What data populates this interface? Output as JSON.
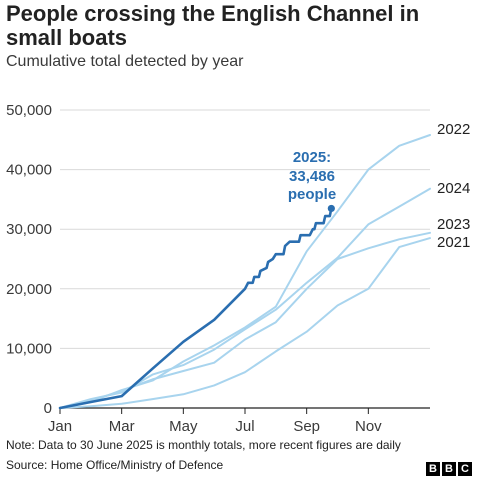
{
  "header": {
    "title": "People crossing the English Channel in small boats",
    "subtitle": "Cumulative total detected by year"
  },
  "footer": {
    "note": "Note: Data to 30 June 2025 is monthly totals, more recent figures are daily",
    "source": "Source: Home Office/Ministry of Defence",
    "logo_letters": [
      "B",
      "B",
      "C"
    ]
  },
  "colors": {
    "highlight": "#2a6eb0",
    "other_years": "#a8d4ee",
    "grid": "#d9d9d9",
    "axis": "#222222"
  },
  "chart_data": {
    "type": "line",
    "title": "People crossing the English Channel in small boats",
    "subtitle": "Cumulative total detected by year",
    "xlabel": "",
    "ylabel": "",
    "x_tick_labels": [
      "Jan",
      "Mar",
      "May",
      "Jul",
      "Sep",
      "Nov"
    ],
    "x_tick_months": [
      0,
      2,
      4,
      6,
      8,
      10
    ],
    "xlim": [
      0,
      12
    ],
    "y_ticks": [
      0,
      10000,
      20000,
      30000,
      40000,
      50000
    ],
    "y_tick_labels": [
      "0",
      "10,000",
      "20,000",
      "30,000",
      "40,000",
      "50,000"
    ],
    "ylim": [
      0,
      50000
    ],
    "grid": "horizontal",
    "series": [
      {
        "name": "2021",
        "highlight": false,
        "points": [
          [
            0,
            0
          ],
          [
            1,
            300
          ],
          [
            2,
            700
          ],
          [
            3,
            1500
          ],
          [
            4,
            2300
          ],
          [
            5,
            3800
          ],
          [
            6,
            6000
          ],
          [
            7,
            9500
          ],
          [
            8,
            12800
          ],
          [
            9,
            17200
          ],
          [
            10,
            20000
          ],
          [
            11,
            27000
          ],
          [
            12,
            28500
          ]
        ]
      },
      {
        "name": "2023",
        "highlight": false,
        "points": [
          [
            0,
            0
          ],
          [
            1,
            1200
          ],
          [
            2,
            2900
          ],
          [
            3,
            4800
          ],
          [
            4,
            6200
          ],
          [
            5,
            7600
          ],
          [
            6,
            11500
          ],
          [
            7,
            14400
          ],
          [
            8,
            20000
          ],
          [
            9,
            25000
          ],
          [
            10,
            26800
          ],
          [
            11,
            28300
          ],
          [
            12,
            29400
          ]
        ]
      },
      {
        "name": "2024",
        "highlight": false,
        "points": [
          [
            0,
            0
          ],
          [
            1,
            1500
          ],
          [
            2,
            2600
          ],
          [
            3,
            5600
          ],
          [
            4,
            7200
          ],
          [
            5,
            9800
          ],
          [
            6,
            13200
          ],
          [
            7,
            16500
          ],
          [
            8,
            21000
          ],
          [
            9,
            25200
          ],
          [
            10,
            30800
          ],
          [
            11,
            33800
          ],
          [
            12,
            36800
          ]
        ]
      },
      {
        "name": "2022",
        "highlight": false,
        "points": [
          [
            0,
            0
          ],
          [
            1,
            1000
          ],
          [
            2,
            3000
          ],
          [
            3,
            4600
          ],
          [
            4,
            7800
          ],
          [
            5,
            10500
          ],
          [
            6,
            13500
          ],
          [
            7,
            17000
          ],
          [
            8,
            26300
          ],
          [
            9,
            33000
          ],
          [
            10,
            40000
          ],
          [
            11,
            44000
          ],
          [
            12,
            45800
          ]
        ]
      },
      {
        "name": "2025",
        "highlight": true,
        "points": [
          [
            0,
            0
          ],
          [
            1,
            1000
          ],
          [
            2,
            2000
          ],
          [
            3,
            6600
          ],
          [
            4,
            11100
          ],
          [
            5,
            14800
          ],
          [
            6,
            20000
          ],
          [
            6.1,
            21000
          ],
          [
            6.25,
            21000
          ],
          [
            6.3,
            22000
          ],
          [
            6.45,
            22000
          ],
          [
            6.5,
            23000
          ],
          [
            6.7,
            23500
          ],
          [
            6.75,
            24500
          ],
          [
            6.9,
            25000
          ],
          [
            7,
            25800
          ],
          [
            7.25,
            25800
          ],
          [
            7.3,
            27200
          ],
          [
            7.45,
            27900
          ],
          [
            7.75,
            27900
          ],
          [
            7.8,
            29000
          ],
          [
            8.1,
            29000
          ],
          [
            8.2,
            30000
          ],
          [
            8.25,
            30000
          ],
          [
            8.3,
            31000
          ],
          [
            8.55,
            31000
          ],
          [
            8.6,
            32200
          ],
          [
            8.75,
            32200
          ],
          [
            8.8,
            33486
          ]
        ],
        "callout": [
          "2025:",
          "33,486",
          "people"
        ]
      }
    ]
  }
}
